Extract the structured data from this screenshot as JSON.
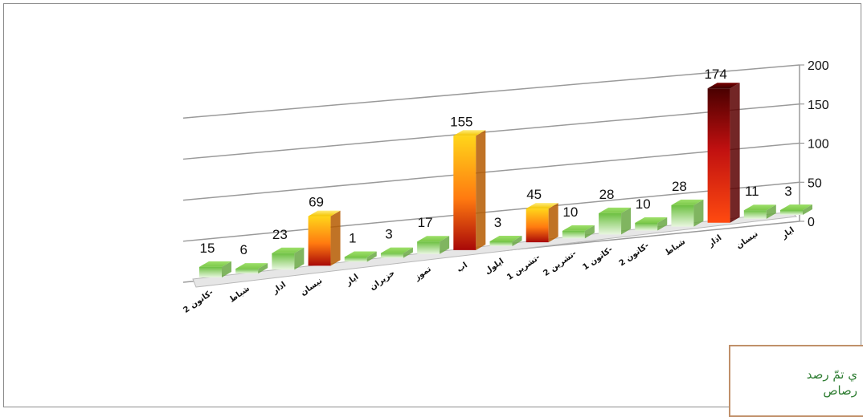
{
  "chart_data": {
    "type": "bar",
    "categories": [
      "كانون 2-",
      "شباط",
      "اذار",
      "نيسان",
      "ايار",
      "حزيران",
      "تموز",
      "اب",
      "ايلول",
      "تشرين 1-",
      "تشرين 2-",
      "كانون 1-",
      "كانون 2-",
      "شباط",
      "اذار",
      "نيسان",
      "ايار"
    ],
    "values": [
      15,
      6,
      23,
      69,
      1,
      3,
      17,
      155,
      3,
      45,
      10,
      28,
      10,
      28,
      174,
      11,
      3
    ],
    "y_ticks": [
      "0",
      "50",
      "100",
      "150",
      "200"
    ],
    "ylim": [
      0,
      200
    ],
    "grid": true,
    "colors": {
      "low": "#7cc84a",
      "mid_top": "#ffd51a",
      "mid_bottom": "#c81010",
      "high_top": "#5a0000",
      "high_bottom": "#ff3a10"
    }
  },
  "note": {
    "line1": "ي تمّ رصد",
    "line2": "رصاص"
  }
}
